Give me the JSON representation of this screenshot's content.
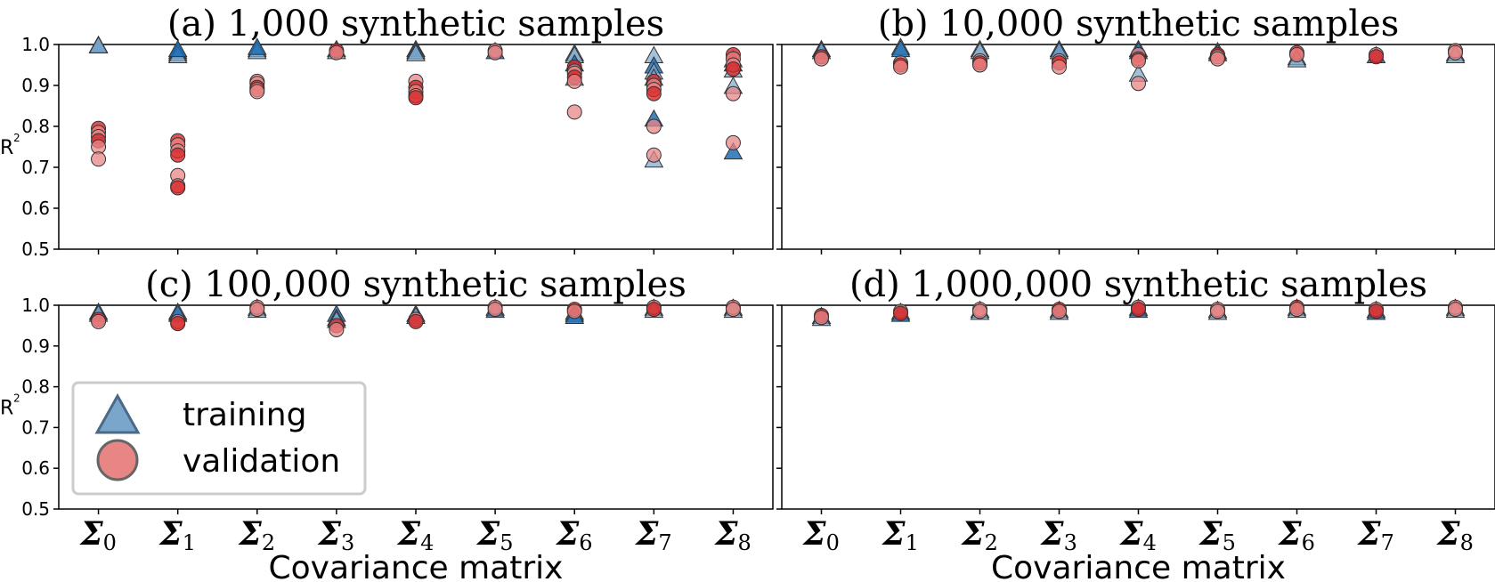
{
  "figure": {
    "x_axis_label": "Covariance matrix",
    "y_axis_label": "R",
    "y_axis_label_sup": "2",
    "y_ticks": [
      "0.5",
      "0.6",
      "0.7",
      "0.8",
      "0.9",
      "1.0"
    ],
    "category_symbol": "Σ",
    "category_subscripts": [
      "0",
      "1",
      "2",
      "3",
      "4",
      "5",
      "6",
      "7",
      "8"
    ],
    "legend": {
      "training": "training",
      "validation": "validation"
    },
    "colors": {
      "training_face": "#7ba6cc",
      "training_dark": "#1f6fb5",
      "validation_face": "#e88585",
      "validation_dark": "#d62728",
      "marker_edge": "#333333"
    }
  },
  "chart_data": [
    {
      "type": "scatter",
      "title": "(a) 1,000 synthetic samples",
      "categories": [
        "Σ0",
        "Σ1",
        "Σ2",
        "Σ3",
        "Σ4",
        "Σ5",
        "Σ6",
        "Σ7",
        "Σ8"
      ],
      "ylim": [
        0.5,
        1.0
      ],
      "xlabel": "",
      "ylabel": "R²",
      "series": [
        {
          "name": "training",
          "points": [
            [
              0,
              1.0
            ],
            [
              0,
              1.0
            ],
            [
              0,
              0.999
            ],
            [
              1,
              0.985
            ],
            [
              1,
              0.98
            ],
            [
              1,
              0.975
            ],
            [
              1,
              0.99
            ],
            [
              2,
              0.99
            ],
            [
              2,
              0.985
            ],
            [
              2,
              0.995
            ],
            [
              3,
              0.99
            ],
            [
              3,
              0.985
            ],
            [
              4,
              0.99
            ],
            [
              4,
              0.985
            ],
            [
              4,
              0.98
            ],
            [
              5,
              0.985
            ],
            [
              6,
              0.98
            ],
            [
              6,
              0.975
            ],
            [
              6,
              0.955
            ],
            [
              6,
              0.92
            ],
            [
              7,
              0.975
            ],
            [
              7,
              0.95
            ],
            [
              7,
              0.935
            ],
            [
              7,
              0.92
            ],
            [
              7,
              0.82
            ],
            [
              7,
              0.72
            ],
            [
              8,
              0.965
            ],
            [
              8,
              0.955
            ],
            [
              8,
              0.94
            ],
            [
              8,
              0.9
            ],
            [
              8,
              0.74
            ]
          ]
        },
        {
          "name": "validation",
          "points": [
            [
              0,
              0.795
            ],
            [
              0,
              0.785
            ],
            [
              0,
              0.775
            ],
            [
              0,
              0.765
            ],
            [
              0,
              0.75
            ],
            [
              0,
              0.72
            ],
            [
              1,
              0.765
            ],
            [
              1,
              0.755
            ],
            [
              1,
              0.74
            ],
            [
              1,
              0.73
            ],
            [
              1,
              0.68
            ],
            [
              1,
              0.655
            ],
            [
              1,
              0.65
            ],
            [
              2,
              0.91
            ],
            [
              2,
              0.905
            ],
            [
              2,
              0.895
            ],
            [
              2,
              0.89
            ],
            [
              2,
              0.885
            ],
            [
              3,
              0.985
            ],
            [
              3,
              0.98
            ],
            [
              4,
              0.91
            ],
            [
              4,
              0.895
            ],
            [
              4,
              0.885
            ],
            [
              4,
              0.875
            ],
            [
              4,
              0.87
            ],
            [
              5,
              0.985
            ],
            [
              5,
              0.98
            ],
            [
              6,
              0.945
            ],
            [
              6,
              0.935
            ],
            [
              6,
              0.93
            ],
            [
              6,
              0.92
            ],
            [
              6,
              0.91
            ],
            [
              6,
              0.835
            ],
            [
              7,
              0.91
            ],
            [
              7,
              0.9
            ],
            [
              7,
              0.89
            ],
            [
              7,
              0.88
            ],
            [
              7,
              0.8
            ],
            [
              7,
              0.73
            ],
            [
              8,
              0.975
            ],
            [
              8,
              0.965
            ],
            [
              8,
              0.95
            ],
            [
              8,
              0.94
            ],
            [
              8,
              0.88
            ],
            [
              8,
              0.76
            ]
          ]
        }
      ]
    },
    {
      "type": "scatter",
      "title": "(b) 10,000 synthetic samples",
      "categories": [
        "Σ0",
        "Σ1",
        "Σ2",
        "Σ3",
        "Σ4",
        "Σ5",
        "Σ6",
        "Σ7",
        "Σ8"
      ],
      "ylim": [
        0.5,
        1.0
      ],
      "xlabel": "",
      "ylabel": "",
      "series": [
        {
          "name": "training",
          "points": [
            [
              0,
              0.99
            ],
            [
              0,
              0.985
            ],
            [
              1,
              0.995
            ],
            [
              1,
              0.99
            ],
            [
              2,
              0.99
            ],
            [
              2,
              0.985
            ],
            [
              3,
              0.99
            ],
            [
              3,
              0.985
            ],
            [
              4,
              0.99
            ],
            [
              4,
              0.985
            ],
            [
              4,
              0.93
            ],
            [
              5,
              0.985
            ],
            [
              5,
              0.98
            ],
            [
              6,
              0.97
            ],
            [
              6,
              0.965
            ],
            [
              7,
              0.975
            ],
            [
              8,
              0.98
            ],
            [
              8,
              0.975
            ]
          ]
        },
        {
          "name": "validation",
          "points": [
            [
              0,
              0.97
            ],
            [
              0,
              0.965
            ],
            [
              1,
              0.955
            ],
            [
              1,
              0.95
            ],
            [
              1,
              0.945
            ],
            [
              2,
              0.96
            ],
            [
              2,
              0.955
            ],
            [
              2,
              0.95
            ],
            [
              3,
              0.96
            ],
            [
              3,
              0.955
            ],
            [
              3,
              0.945
            ],
            [
              4,
              0.975
            ],
            [
              4,
              0.965
            ],
            [
              4,
              0.96
            ],
            [
              4,
              0.905
            ],
            [
              5,
              0.975
            ],
            [
              5,
              0.97
            ],
            [
              5,
              0.965
            ],
            [
              6,
              0.98
            ],
            [
              6,
              0.975
            ],
            [
              7,
              0.975
            ],
            [
              7,
              0.97
            ],
            [
              8,
              0.985
            ],
            [
              8,
              0.98
            ]
          ]
        }
      ]
    },
    {
      "type": "scatter",
      "title": "(c) 100,000 synthetic samples",
      "categories": [
        "Σ0",
        "Σ1",
        "Σ2",
        "Σ3",
        "Σ4",
        "Σ5",
        "Σ6",
        "Σ7",
        "Σ8"
      ],
      "ylim": [
        0.5,
        1.0
      ],
      "xlabel": "Covariance matrix",
      "ylabel": "R²",
      "series": [
        {
          "name": "training",
          "points": [
            [
              0,
              0.985
            ],
            [
              0,
              0.98
            ],
            [
              1,
              0.985
            ],
            [
              1,
              0.98
            ],
            [
              2,
              0.995
            ],
            [
              2,
              0.99
            ],
            [
              3,
              0.98
            ],
            [
              3,
              0.97
            ],
            [
              3,
              0.965
            ],
            [
              4,
              0.98
            ],
            [
              4,
              0.975
            ],
            [
              5,
              0.995
            ],
            [
              5,
              0.99
            ],
            [
              6,
              0.985
            ],
            [
              6,
              0.98
            ],
            [
              6,
              0.975
            ],
            [
              7,
              0.995
            ],
            [
              7,
              0.99
            ],
            [
              8,
              0.995
            ],
            [
              8,
              0.99
            ]
          ]
        },
        {
          "name": "validation",
          "points": [
            [
              0,
              0.965
            ],
            [
              0,
              0.96
            ],
            [
              1,
              0.96
            ],
            [
              1,
              0.955
            ],
            [
              2,
              0.995
            ],
            [
              2,
              0.99
            ],
            [
              3,
              0.95
            ],
            [
              3,
              0.94
            ],
            [
              4,
              0.965
            ],
            [
              4,
              0.96
            ],
            [
              5,
              0.995
            ],
            [
              5,
              0.99
            ],
            [
              6,
              0.99
            ],
            [
              6,
              0.985
            ],
            [
              7,
              0.995
            ],
            [
              7,
              0.99
            ],
            [
              8,
              0.995
            ],
            [
              8,
              0.99
            ]
          ]
        }
      ]
    },
    {
      "type": "scatter",
      "title": "(d) 1,000,000 synthetic samples",
      "categories": [
        "Σ0",
        "Σ1",
        "Σ2",
        "Σ3",
        "Σ4",
        "Σ5",
        "Σ6",
        "Σ7",
        "Σ8"
      ],
      "ylim": [
        0.5,
        1.0
      ],
      "xlabel": "Covariance matrix",
      "ylabel": "",
      "series": [
        {
          "name": "training",
          "points": [
            [
              0,
              0.975
            ],
            [
              0,
              0.97
            ],
            [
              1,
              0.985
            ],
            [
              1,
              0.98
            ],
            [
              2,
              0.99
            ],
            [
              2,
              0.985
            ],
            [
              3,
              0.99
            ],
            [
              3,
              0.985
            ],
            [
              4,
              0.995
            ],
            [
              4,
              0.99
            ],
            [
              5,
              0.99
            ],
            [
              5,
              0.985
            ],
            [
              6,
              0.995
            ],
            [
              6,
              0.99
            ],
            [
              7,
              0.99
            ],
            [
              7,
              0.985
            ],
            [
              8,
              0.995
            ],
            [
              8,
              0.99
            ]
          ]
        },
        {
          "name": "validation",
          "points": [
            [
              0,
              0.975
            ],
            [
              0,
              0.97
            ],
            [
              1,
              0.985
            ],
            [
              1,
              0.98
            ],
            [
              2,
              0.99
            ],
            [
              2,
              0.985
            ],
            [
              3,
              0.99
            ],
            [
              3,
              0.985
            ],
            [
              4,
              0.995
            ],
            [
              4,
              0.99
            ],
            [
              5,
              0.99
            ],
            [
              5,
              0.985
            ],
            [
              6,
              0.995
            ],
            [
              6,
              0.99
            ],
            [
              7,
              0.99
            ],
            [
              7,
              0.985
            ],
            [
              8,
              0.995
            ],
            [
              8,
              0.99
            ]
          ]
        }
      ]
    }
  ]
}
